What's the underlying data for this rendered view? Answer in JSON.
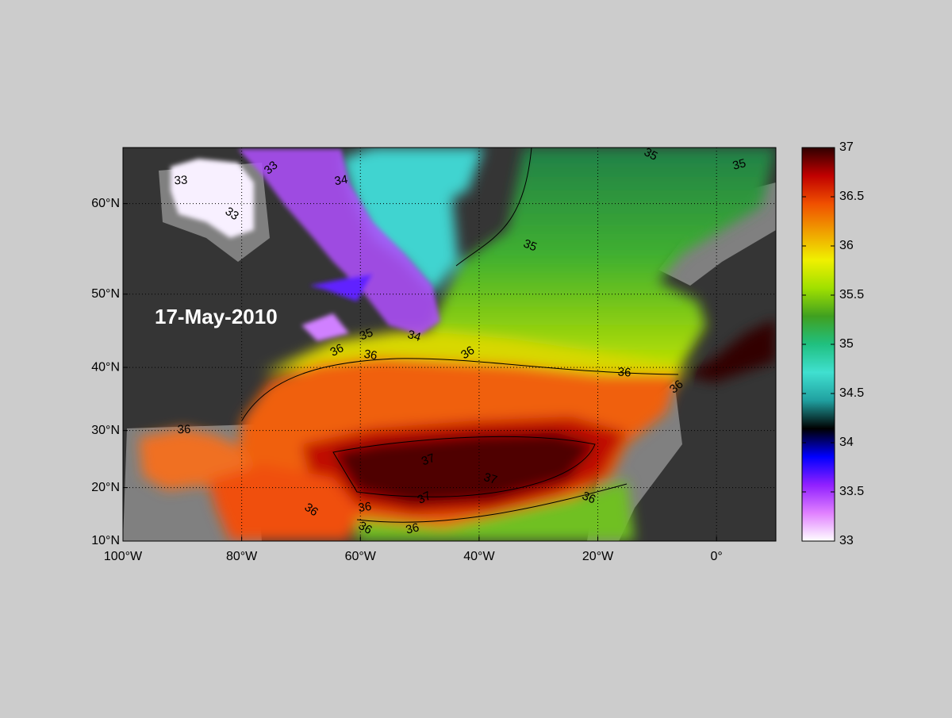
{
  "map": {
    "date_label": "17-May-2010",
    "xlim": [
      -100,
      10
    ],
    "ylim": [
      10,
      65
    ],
    "xticks": [
      {
        "value": -100,
        "label": "100°W"
      },
      {
        "value": -80,
        "label": "80°W"
      },
      {
        "value": -60,
        "label": "60°W"
      },
      {
        "value": -40,
        "label": "40°W"
      },
      {
        "value": -20,
        "label": "20°W"
      },
      {
        "value": 0,
        "label": "0°"
      }
    ],
    "yticks": [
      {
        "value": 10,
        "label": "10°N"
      },
      {
        "value": 20,
        "label": "20°N"
      },
      {
        "value": 30,
        "label": "30°N"
      },
      {
        "value": 40,
        "label": "40°N"
      },
      {
        "value": 50,
        "label": "50°N"
      },
      {
        "value": 60,
        "label": "60°N"
      }
    ],
    "grid": true,
    "colorbar": {
      "lim": [
        33,
        37
      ],
      "ticks": [
        33,
        33.5,
        34,
        34.5,
        35,
        35.5,
        36,
        36.5,
        37
      ],
      "colors": [
        "#ffffff",
        "#e080ff",
        "#9020ff",
        "#0000ff",
        "#000000",
        "#20a0a0",
        "#40e0d0",
        "#20c080",
        "#40a020",
        "#a0e000",
        "#f0f000",
        "#f0a000",
        "#f05000",
        "#c00000",
        "#300000"
      ]
    },
    "contour_labels": [
      33,
      33,
      33,
      34,
      35,
      35,
      35,
      35,
      34,
      36,
      36,
      36,
      36,
      36,
      36,
      36,
      36,
      36,
      36,
      36,
      37,
      37,
      37
    ]
  }
}
